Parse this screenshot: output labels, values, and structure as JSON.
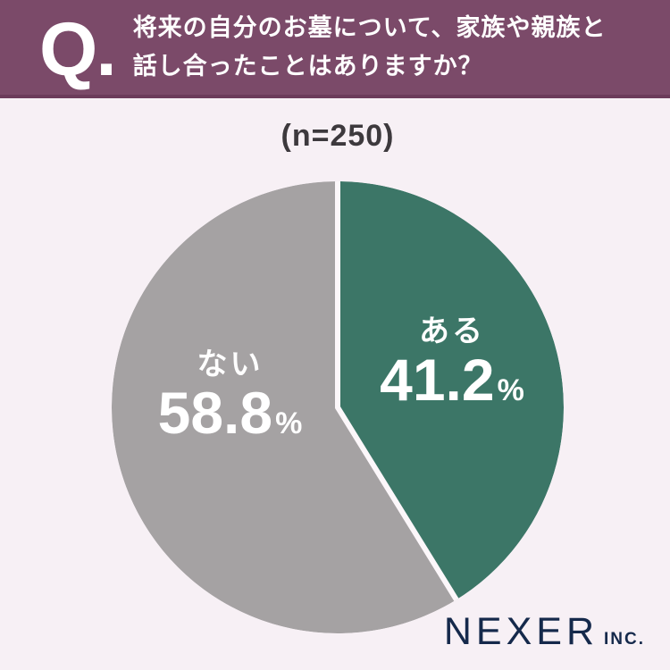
{
  "header": {
    "q_mark": "Q.",
    "question_line1": "将来の自分のお墓について、家族や親族と",
    "question_line2": "話し合ったことはありますか？"
  },
  "sample_label": "(n=250)",
  "chart_data": {
    "type": "pie",
    "title": "将来の自分のお墓について、家族や親族と話し合ったことはありますか？",
    "sample_size_text": "(n=250)",
    "sample_size": 250,
    "unit": "%",
    "start_angle_deg": 0,
    "direction": "clockwise",
    "legend_position": "inside",
    "slices": [
      {
        "label": "ある",
        "value": 41.2,
        "value_text": "41.2",
        "color": "#3c7667",
        "text_color": "#ffffff"
      },
      {
        "label": "ない",
        "value": 58.8,
        "value_text": "58.8",
        "color": "#a5a2a3",
        "text_color": "#ffffff"
      }
    ],
    "separator_color": "#fcf7fa"
  },
  "footer": {
    "brand": "NEXER",
    "brand_suffix": "INC."
  },
  "colors": {
    "background": "#f7f0f5",
    "header_bg": "#7b4a69",
    "header_edge": "#6c3c5b",
    "question_text": "#ffffff",
    "sample_text": "#3d393d",
    "label_text": "#ffffff",
    "brand_navy": "#15294b"
  }
}
